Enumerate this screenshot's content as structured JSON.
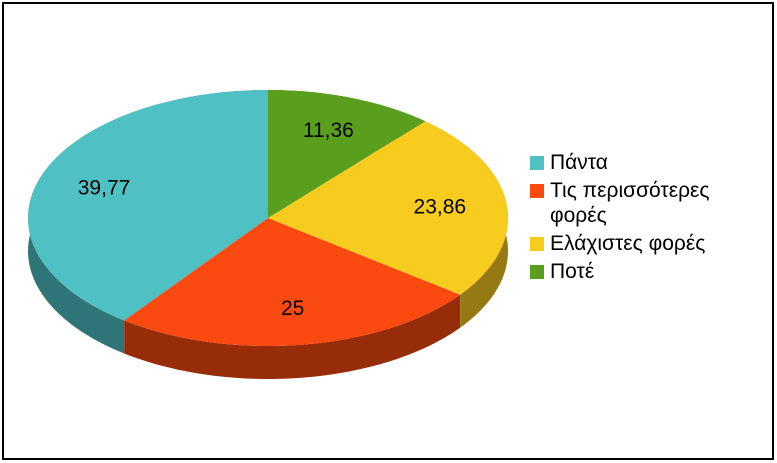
{
  "chart_data": {
    "type": "pie",
    "categories": [
      "Πάντα",
      "Τις περισσότερες φορές",
      "Ελάχιστες φορές",
      "Ποτέ"
    ],
    "values": [
      39.77,
      25,
      23.86,
      11.36
    ],
    "value_labels": [
      "39,77",
      "25",
      "23,86",
      "11,36"
    ],
    "colors": [
      "#4fc1c4",
      "#fb4a0f",
      "#f8cc1f",
      "#5a9e1e"
    ],
    "legend": "right"
  }
}
